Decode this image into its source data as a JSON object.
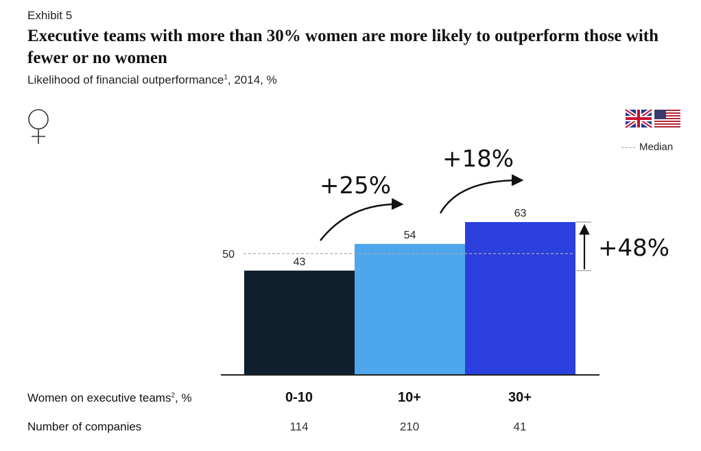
{
  "header": {
    "exhibit": "Exhibit 5",
    "title": "Executive teams with more than 30% women are more likely to outperform those with fewer or no women",
    "subtitle_main": "Likelihood of financial outperformance",
    "subtitle_sup": "1",
    "subtitle_tail": ", 2014, %"
  },
  "icons": [
    "female-symbol-icon",
    "uk-flag-icon",
    "us-flag-icon"
  ],
  "legend": {
    "median_label": "Median"
  },
  "rows": {
    "women_label": "Women on executive teams",
    "women_sup": "2",
    "women_tail": ", %",
    "companies_label": "Number of companies"
  },
  "colors": {
    "bar_0_10": "#0f1f2e",
    "bar_10_plus": "#4ea6ec",
    "bar_30_plus": "#2b3fdd",
    "median_line": "#aaaaaa"
  },
  "chart_data": {
    "type": "bar",
    "categories": [
      "0-10",
      "10+",
      "30+"
    ],
    "values": [
      43,
      54,
      63
    ],
    "company_counts": [
      "114",
      "210",
      "41"
    ],
    "median": 50,
    "median_label_value": "50",
    "ylim": [
      0,
      63
    ],
    "annotations": [
      {
        "text": "+25%",
        "from": "0-10",
        "to": "10+"
      },
      {
        "text": "+18%",
        "from": "10+",
        "to": "30+"
      },
      {
        "text": "+48%",
        "from": "0-10",
        "to": "30+"
      }
    ]
  }
}
